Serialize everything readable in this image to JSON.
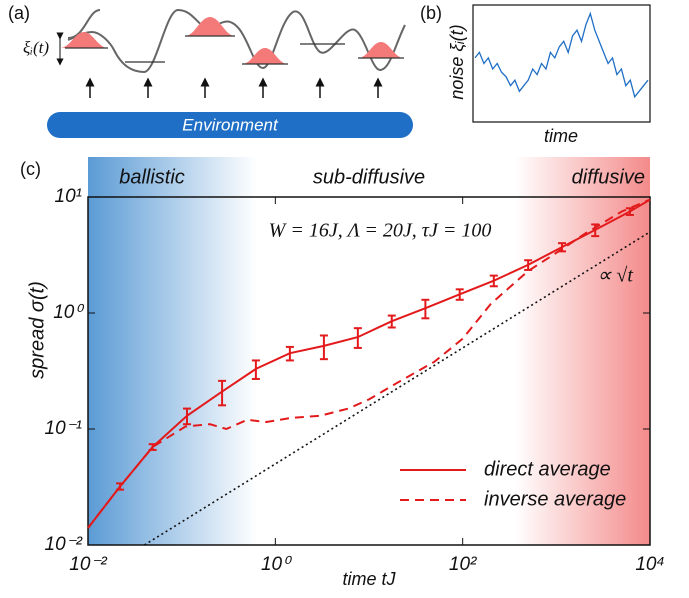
{
  "diagram": {
    "label": "(a)",
    "xi_label": "ξᵢ(t)",
    "environment": "Environment"
  },
  "chart_data": [
    {
      "type": "line",
      "panel_label": "(b)",
      "ylabel": "noise ξᵢ(t)",
      "xlabel": "time",
      "color": "#1f6fc6",
      "ylim": [
        0,
        1
      ],
      "values": [
        0.55,
        0.6,
        0.5,
        0.55,
        0.45,
        0.5,
        0.42,
        0.38,
        0.3,
        0.35,
        0.25,
        0.3,
        0.35,
        0.45,
        0.4,
        0.5,
        0.45,
        0.6,
        0.55,
        0.65,
        0.7,
        0.6,
        0.75,
        0.8,
        0.7,
        0.85,
        0.95,
        0.8,
        0.7,
        0.6,
        0.5,
        0.55,
        0.4,
        0.45,
        0.3,
        0.35,
        0.2,
        0.25,
        0.3,
        0.35
      ]
    },
    {
      "type": "line",
      "panel_label": "(c)",
      "xlabel": "time tJ",
      "ylabel": "spread σ(t)",
      "annotation": "W = 16J, Λ = 20J, τJ = 100",
      "reference_label": "∝ √t",
      "region_labels": [
        "ballistic",
        "sub-diffusive",
        "diffusive"
      ],
      "xscale": "log",
      "yscale": "log",
      "xlim": [
        0.01,
        10000
      ],
      "ylim": [
        0.01,
        10
      ],
      "xticks": [
        {
          "value": 0.01,
          "label": "10⁻²"
        },
        {
          "value": 1,
          "label": "10⁰"
        },
        {
          "value": 100,
          "label": "10²"
        },
        {
          "value": 10000,
          "label": "10⁴"
        }
      ],
      "yticks": [
        {
          "value": 0.01,
          "label": "10⁻²"
        },
        {
          "value": 0.1,
          "label": "10⁻¹"
        },
        {
          "value": 1,
          "label": "10⁰"
        },
        {
          "value": 10,
          "label": "10¹"
        }
      ],
      "legend": "lower right",
      "series": [
        {
          "name": "direct average",
          "color": "#e31a1c",
          "dash": "solid",
          "x": [
            0.01,
            0.022,
            0.049,
            0.114,
            0.27,
            0.62,
            1.43,
            3.3,
            7.6,
            17.5,
            40,
            93,
            215,
            500,
            1150,
            2600,
            6100,
            10000
          ],
          "values": [
            0.014,
            0.032,
            0.07,
            0.13,
            0.21,
            0.33,
            0.45,
            0.52,
            0.62,
            0.85,
            1.1,
            1.45,
            1.9,
            2.6,
            3.7,
            5.2,
            7.5,
            9.5
          ],
          "errors": [
            null,
            0.002,
            0.004,
            0.02,
            0.05,
            0.06,
            0.06,
            0.12,
            0.12,
            0.1,
            0.2,
            0.15,
            0.2,
            0.25,
            0.3,
            0.6,
            0.5,
            null
          ]
        },
        {
          "name": "inverse average",
          "color": "#e31a1c",
          "dash": "dashed",
          "x": [
            0.01,
            0.022,
            0.049,
            0.11,
            0.2,
            0.3,
            0.5,
            0.8,
            1.5,
            3,
            6,
            10,
            20,
            50,
            100,
            200,
            500,
            1000,
            2000,
            5000,
            10000
          ],
          "values": [
            0.014,
            0.032,
            0.07,
            0.105,
            0.11,
            0.1,
            0.12,
            0.115,
            0.125,
            0.13,
            0.15,
            0.18,
            0.25,
            0.38,
            0.6,
            1.2,
            2.3,
            3.3,
            4.8,
            7.5,
            9.5
          ]
        },
        {
          "color": "#111111",
          "dash": "dotted",
          "x": [
            0.04,
            10000
          ],
          "values": [
            0.01,
            5
          ]
        }
      ]
    }
  ]
}
